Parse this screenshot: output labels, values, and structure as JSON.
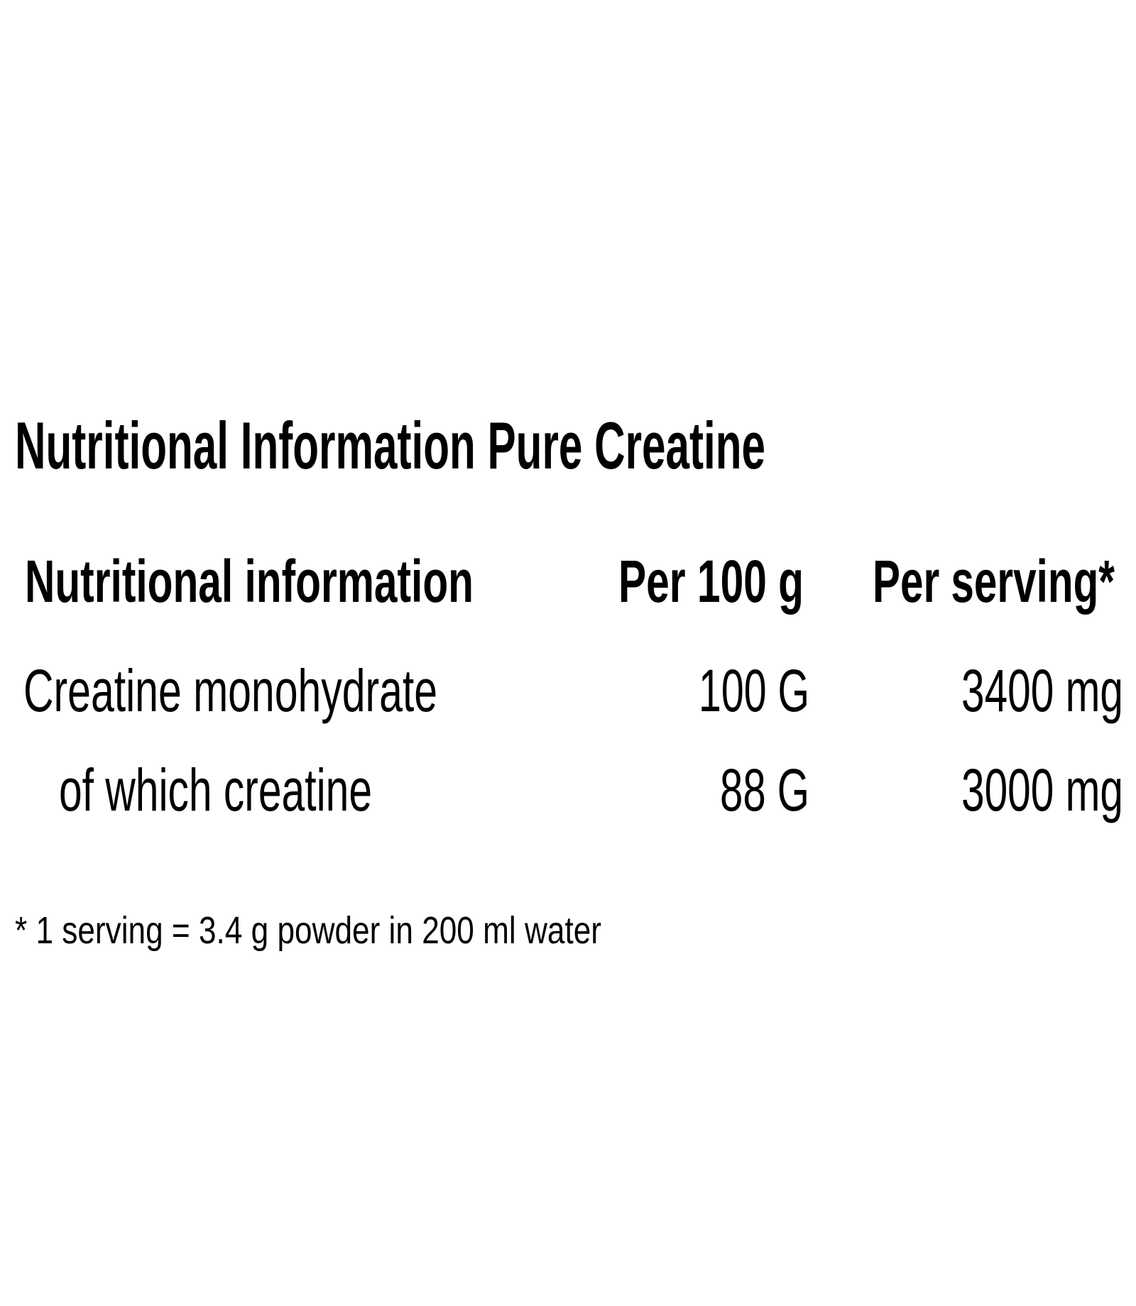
{
  "title": "Nutritional Information Pure Creatine",
  "table": {
    "headers": [
      "Nutritional information",
      "Per 100 g",
      "Per serving*"
    ],
    "rows": [
      {
        "label": "Creatine monohydrate",
        "per_100g": "100 G",
        "per_serving": "3400 mg"
      },
      {
        "label": "of which creatine",
        "per_100g": "88 G",
        "per_serving": "3000 mg"
      }
    ]
  },
  "footnote": "* 1 serving = 3.4 g powder in 200 ml water",
  "colors": {
    "text": "#000000",
    "background": "#ffffff"
  }
}
